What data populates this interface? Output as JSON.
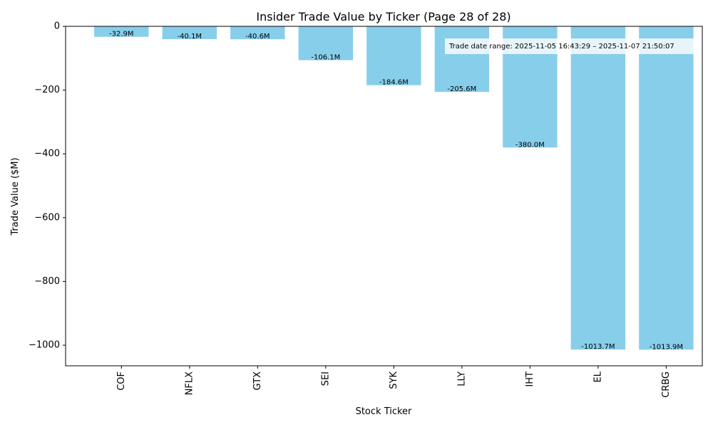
{
  "chart_data": {
    "type": "bar",
    "title": "Insider Trade Value by Ticker (Page 28 of 28)",
    "xlabel": "Stock Ticker",
    "ylabel": "Trade Value ($M)",
    "categories": [
      "COF",
      "NFLX",
      "GTX",
      "SEI",
      "SYK",
      "LLY",
      "IHT",
      "EL",
      "CRBG"
    ],
    "values": [
      -32.9,
      -40.1,
      -40.6,
      -106.1,
      -184.6,
      -205.6,
      -380.0,
      -1013.7,
      -1013.9
    ],
    "data_labels": [
      "-32.9M",
      "-40.1M",
      "-40.6M",
      "-106.1M",
      "-184.6M",
      "-205.6M",
      "-380.0M",
      "-1013.7M",
      "-1013.9M"
    ],
    "ylim": [
      -1064.6,
      0
    ],
    "yticks": [
      0,
      -200,
      -400,
      -600,
      -800,
      -1000
    ],
    "ytick_labels": [
      "0",
      "−200",
      "−400",
      "−600",
      "−800",
      "−1000"
    ],
    "grid": false,
    "bar_color": "#87CEEB",
    "annotation": "Trade date range: 2025-11-05 16:43:29 – 2025-11-07 21:50:07"
  }
}
